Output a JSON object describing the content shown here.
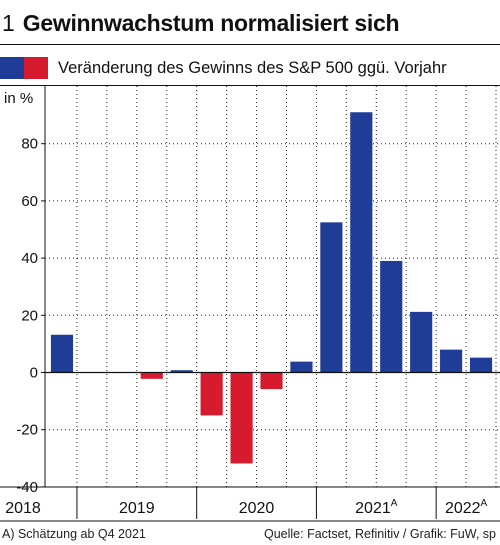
{
  "header": {
    "figure_number": "1",
    "title": "Gewinnwachstum normalisiert sich"
  },
  "legend": {
    "label": "Veränderung des Gewinns des S&P 500 ggü. Vorjahr",
    "colors": [
      "#1f3d96",
      "#d61b2e"
    ]
  },
  "chart_data": {
    "type": "bar",
    "ylabel": "in %",
    "ylim": [
      -40,
      100
    ],
    "yticks": [
      -40,
      -20,
      0,
      20,
      40,
      60,
      80
    ],
    "grid": true,
    "positive_color": "#1f3d96",
    "negative_color": "#d61b2e",
    "quarters": [
      "2018 Q4",
      "2019 Q1",
      "2019 Q2",
      "2019 Q3",
      "2019 Q4",
      "2020 Q1",
      "2020 Q2",
      "2020 Q3",
      "2020 Q4",
      "2021 Q1",
      "2021 Q2",
      "2021 Q3",
      "2021 Q4",
      "2022 Q1",
      "2022 Q2"
    ],
    "values": [
      13.2,
      0,
      0,
      -2.2,
      0.8,
      -15.0,
      -31.8,
      -5.8,
      3.8,
      52.5,
      91.0,
      39.0,
      21.2,
      8.0,
      5.2
    ],
    "year_labels": [
      {
        "text": "2018",
        "superscript": ""
      },
      {
        "text": "2019",
        "superscript": ""
      },
      {
        "text": "2020",
        "superscript": ""
      },
      {
        "text": "2021",
        "superscript": "A"
      },
      {
        "text": "2022",
        "superscript": "A"
      }
    ]
  },
  "footer": {
    "note": "A) Schätzung ab Q4 2021",
    "source": "Quelle: Factset, Refinitiv / Grafik: FuW, sp"
  }
}
